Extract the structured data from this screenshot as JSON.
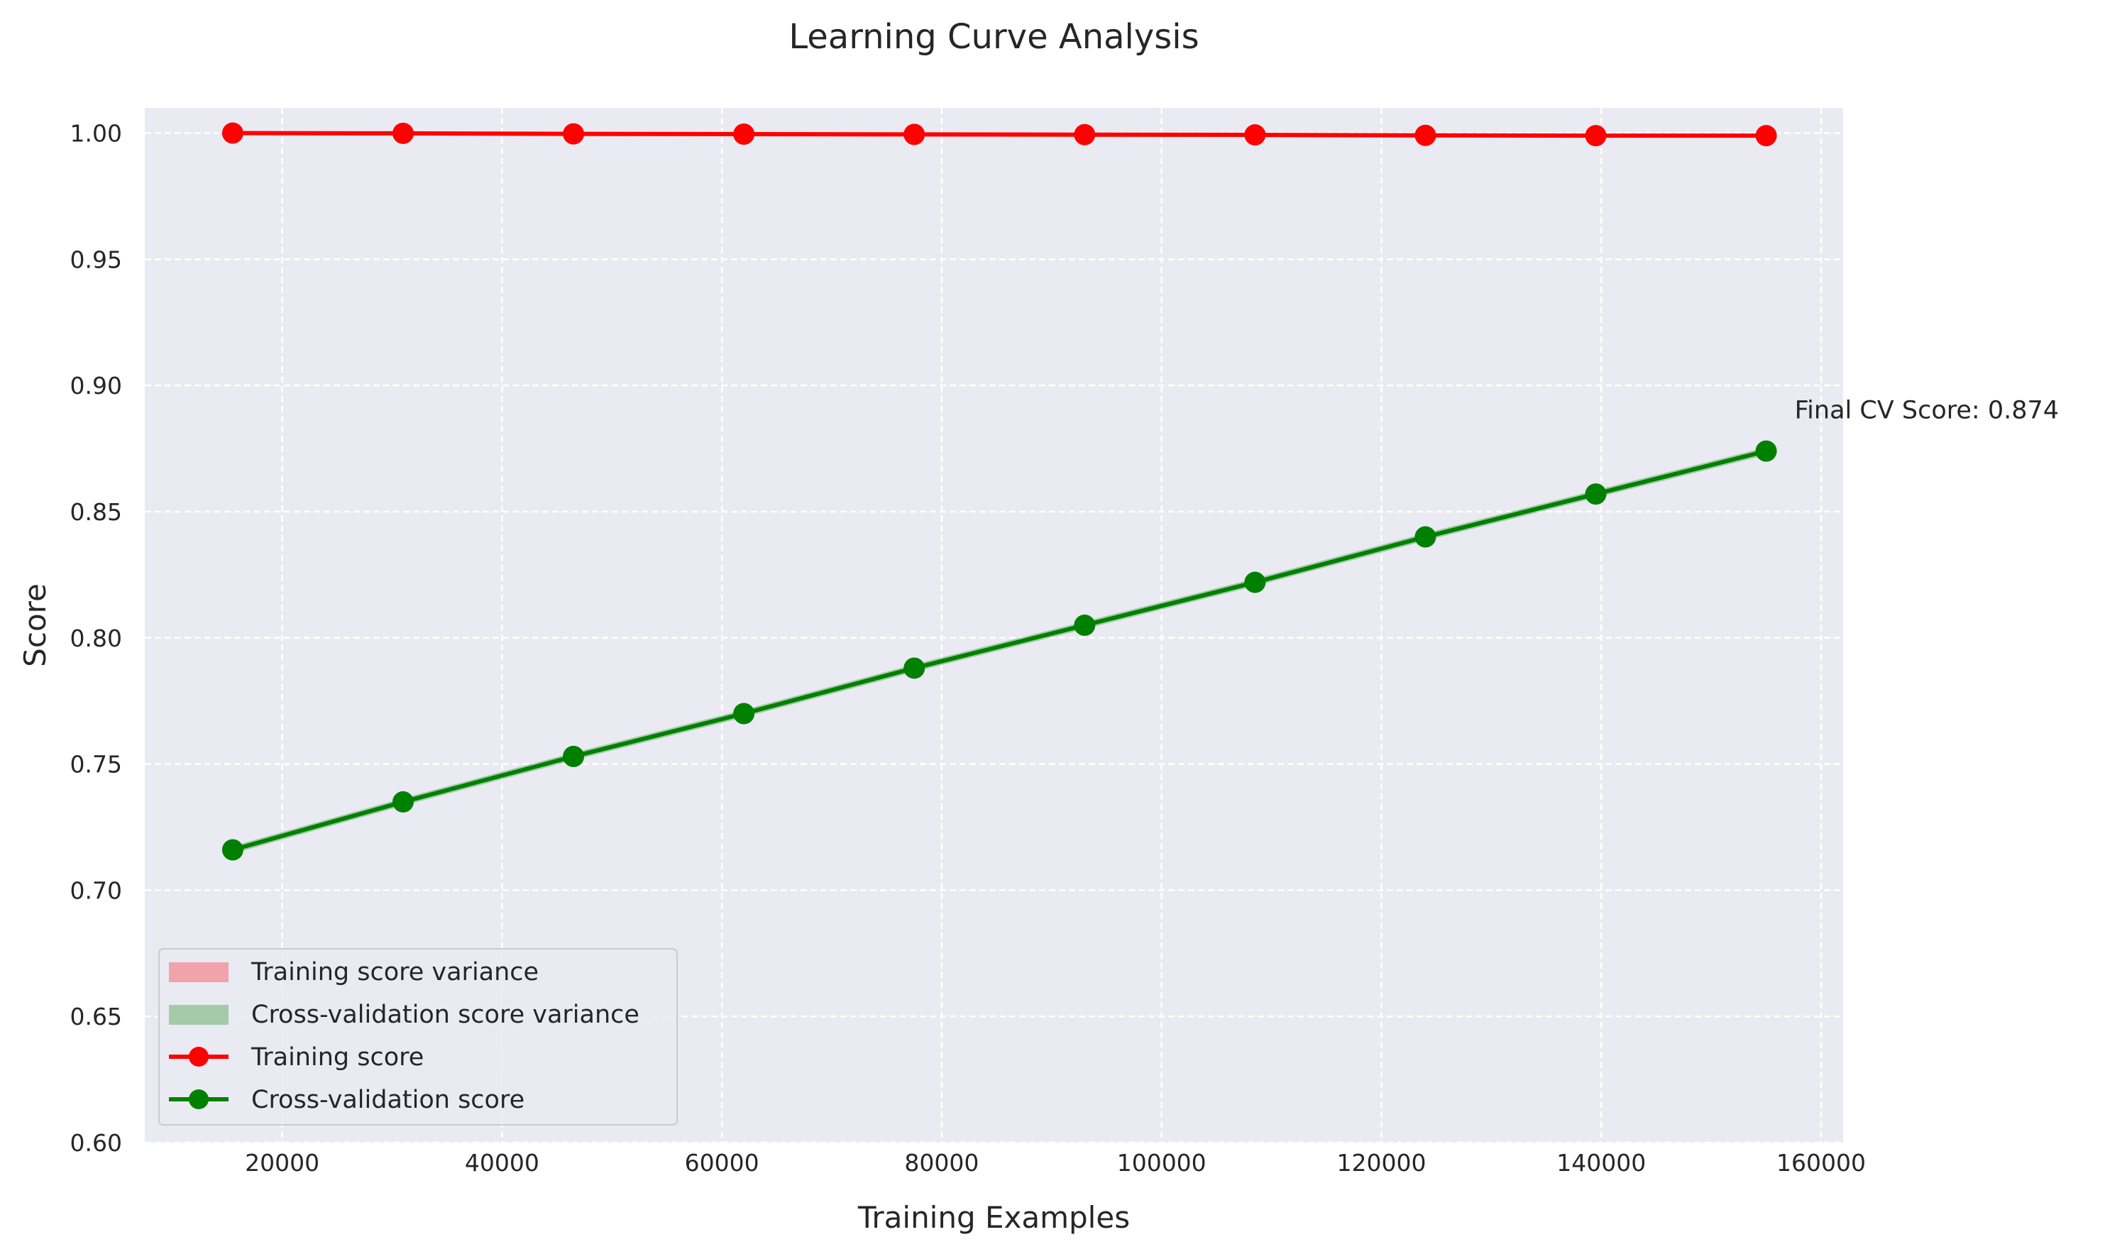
{
  "chart_data": {
    "type": "line",
    "title": "Learning Curve Analysis",
    "xlabel": "Training Examples",
    "ylabel": "Score",
    "xlim": [
      7500,
      162000
    ],
    "ylim": [
      0.6,
      1.01
    ],
    "xticks": [
      20000,
      40000,
      60000,
      80000,
      100000,
      120000,
      140000,
      160000
    ],
    "yticks": [
      0.6,
      0.65,
      0.7,
      0.75,
      0.8,
      0.85,
      0.9,
      0.95,
      1.0
    ],
    "xtick_labels": [
      "20000",
      "40000",
      "60000",
      "80000",
      "100000",
      "120000",
      "140000",
      "160000"
    ],
    "ytick_labels": [
      "0.60",
      "0.65",
      "0.70",
      "0.75",
      "0.80",
      "0.85",
      "0.90",
      "0.95",
      "1.00"
    ],
    "grid": true,
    "legend_position": "lower-left",
    "x": [
      15500,
      31000,
      46500,
      62000,
      77500,
      93000,
      108500,
      124000,
      139500,
      155000
    ],
    "series": [
      {
        "name": "Training score",
        "color": "#ff0000",
        "values": [
          1.0,
          0.9999,
          0.9997,
          0.9996,
          0.9995,
          0.9994,
          0.9993,
          0.9991,
          0.999,
          0.999
        ],
        "std": [
          0.0001,
          0.0001,
          0.0001,
          0.0001,
          0.0001,
          0.0001,
          0.0001,
          0.0001,
          0.0001,
          0.0001
        ]
      },
      {
        "name": "Cross-validation score",
        "color": "#008000",
        "values": [
          0.716,
          0.735,
          0.753,
          0.77,
          0.788,
          0.805,
          0.822,
          0.84,
          0.857,
          0.874
        ],
        "std": [
          0.0015,
          0.0015,
          0.0015,
          0.0015,
          0.0015,
          0.0015,
          0.0015,
          0.0015,
          0.0015,
          0.0015
        ]
      }
    ],
    "legend": [
      {
        "label": "Training score variance",
        "kind": "patch",
        "color": "#ff0000"
      },
      {
        "label": "Cross-validation score variance",
        "kind": "patch",
        "color": "#008000"
      },
      {
        "label": "Training score",
        "kind": "line",
        "color": "#ff0000"
      },
      {
        "label": "Cross-validation score",
        "kind": "line",
        "color": "#008000"
      }
    ],
    "annotation": {
      "text": "Final CV Score: 0.874"
    }
  }
}
